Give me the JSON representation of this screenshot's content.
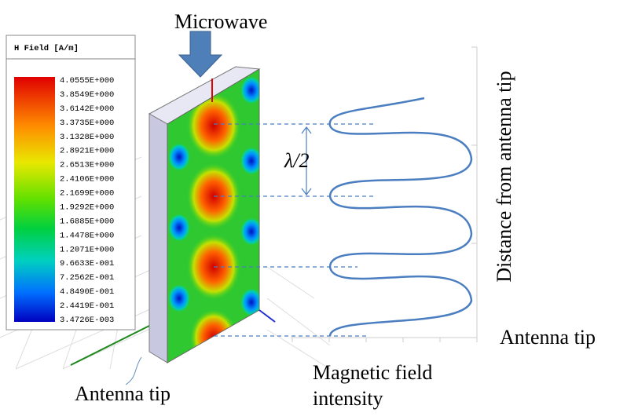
{
  "microwave_label": "Microwave",
  "legend": {
    "title": "H Field [A/m]",
    "labels": [
      "4.0555E+000",
      "3.8549E+000",
      "3.6142E+000",
      "3.3735E+000",
      "3.1328E+000",
      "2.8921E+000",
      "2.6513E+000",
      "2.4106E+000",
      "2.1699E+000",
      "1.9292E+000",
      "1.6885E+000",
      "1.4478E+000",
      "1.2071E+000",
      "9.6633E-001",
      "7.2562E-001",
      "4.8490E-001",
      "2.4419E-001",
      "3.4726E-003"
    ]
  },
  "half_wavelength_label": "λ/2",
  "model_label": "Antenna tip",
  "plot": {
    "y_label": "Distance from antenna tip",
    "y_end_label": "Antenna tip",
    "x_label": "Magnetic field intensity"
  }
}
